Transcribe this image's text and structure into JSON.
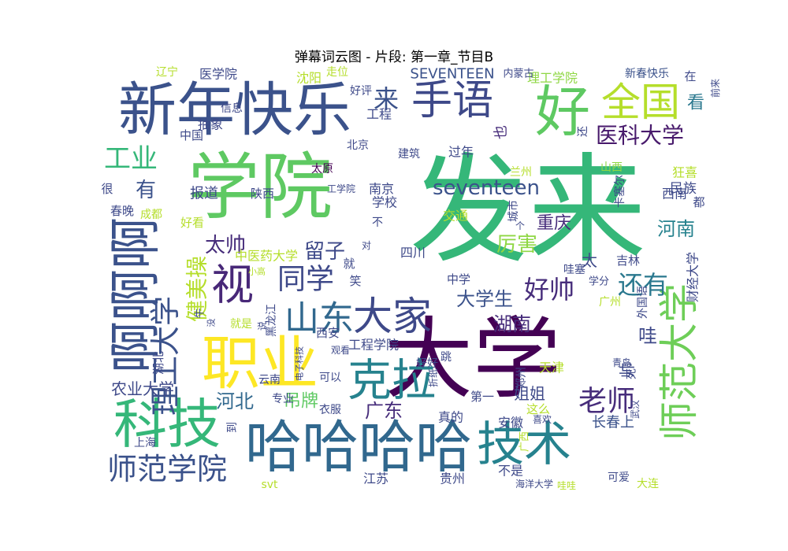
{
  "chart_data": {
    "type": "wordcloud",
    "title": "弹幕词云图 - 片段: 第一章_节目B",
    "colormap": "viridis",
    "words": [
      {
        "text": "发来",
        "weight": 100,
        "color": "#35b779"
      },
      {
        "text": "大学",
        "weight": 68,
        "color": "#440154"
      },
      {
        "text": "学院",
        "weight": 62,
        "color": "#5ec962"
      },
      {
        "text": "新年快乐",
        "weight": 48,
        "color": "#3b528b"
      },
      {
        "text": "哈哈哈哈",
        "weight": 46,
        "color": "#31688e"
      },
      {
        "text": "职业",
        "weight": 45,
        "color": "#fde725"
      },
      {
        "text": "好",
        "weight": 43,
        "color": "#5ec962"
      },
      {
        "text": "啊啊啊",
        "weight": 42,
        "color": "#3b528b"
      },
      {
        "text": "科技",
        "weight": 40,
        "color": "#35b779"
      },
      {
        "text": "技术",
        "weight": 38,
        "color": "#26828e"
      },
      {
        "text": "克拉",
        "weight": 37,
        "color": "#26828e"
      },
      {
        "text": "视",
        "weight": 36,
        "color": "#482878"
      },
      {
        "text": "师范大学",
        "weight": 36,
        "color": "#6ece58"
      },
      {
        "text": "手语",
        "weight": 34,
        "color": "#3e4989"
      },
      {
        "text": "全国",
        "weight": 34,
        "color": "#b5de2b"
      },
      {
        "text": "大家",
        "weight": 33,
        "color": "#3e4989"
      },
      {
        "text": "师范学院",
        "weight": 30,
        "color": "#3b528b"
      },
      {
        "text": "理工大学",
        "weight": 30,
        "color": "#3b528b"
      },
      {
        "text": "山东",
        "weight": 28,
        "color": "#31688e"
      },
      {
        "text": "工业",
        "weight": 27,
        "color": "#35b779"
      },
      {
        "text": "同学",
        "weight": 27,
        "color": "#3e4989"
      },
      {
        "text": "好帅",
        "weight": 25,
        "color": "#472d7b"
      },
      {
        "text": "还有",
        "weight": 25,
        "color": "#2a788e"
      },
      {
        "text": "老师",
        "weight": 25,
        "color": "#472d7b"
      },
      {
        "text": "来",
        "weight": 24,
        "color": "#3b528b"
      },
      {
        "text": "健美操",
        "weight": 23,
        "color": "#b5de2b"
      },
      {
        "text": "有",
        "weight": 22,
        "color": "#3b528b"
      },
      {
        "text": "医科大学",
        "weight": 21,
        "color": "#481a6c"
      },
      {
        "text": "seventeen",
        "weight": 21,
        "color": "#3b528b"
      },
      {
        "text": "留子",
        "weight": 21,
        "color": "#3e4989"
      },
      {
        "text": "太帅",
        "weight": 21,
        "color": "#472d7b"
      },
      {
        "text": "河南",
        "weight": 20,
        "color": "#26828e"
      },
      {
        "text": "厉害",
        "weight": 20,
        "color": "#8fd744"
      },
      {
        "text": "大学生",
        "weight": 20,
        "color": "#3b528b"
      },
      {
        "text": "湖南",
        "weight": 20,
        "color": "#472d7b"
      },
      {
        "text": "看",
        "weight": 20,
        "color": "#2a788e"
      },
      {
        "text": "河北",
        "weight": 19,
        "color": "#31688e"
      },
      {
        "text": "广东",
        "weight": 18,
        "color": "#472d7b"
      },
      {
        "text": "重庆",
        "weight": 17,
        "color": "#472d7b"
      },
      {
        "text": "吊牌",
        "weight": 17,
        "color": "#5ec962"
      },
      {
        "text": "SEVENTEEN",
        "weight": 16,
        "color": "#3b528b"
      },
      {
        "text": "农业大学",
        "weight": 16,
        "color": "#3e4989"
      },
      {
        "text": "哇",
        "weight": 16,
        "color": "#3e4989"
      },
      {
        "text": "太",
        "weight": 16,
        "color": "#3e4989"
      },
      {
        "text": "中医药大学",
        "weight": 14,
        "color": "#b5de2b"
      },
      {
        "text": "报道",
        "weight": 14,
        "color": "#3e4989"
      },
      {
        "text": "工程学院",
        "weight": 14,
        "color": "#3e4989"
      },
      {
        "text": "姐姐",
        "weight": 14,
        "color": "#3e4989"
      },
      {
        "text": "长春上",
        "weight": 14,
        "color": "#3b528b"
      },
      {
        "text": "帅",
        "weight": 14,
        "color": "#3e4989"
      },
      {
        "text": "医学院",
        "weight": 13,
        "color": "#3e4989"
      },
      {
        "text": "理工学院",
        "weight": 13,
        "color": "#8fd744"
      },
      {
        "text": "新春快乐",
        "weight": 13,
        "color": "#3b528b"
      },
      {
        "text": "内蒙古",
        "weight": 12,
        "color": "#3e4989"
      },
      {
        "text": "沈阳",
        "weight": 13,
        "color": "#b5de2b"
      },
      {
        "text": "辽宁",
        "weight": 12,
        "color": "#b5de2b"
      },
      {
        "text": "走位",
        "weight": 12,
        "color": "#b5de2b"
      },
      {
        "text": "工程",
        "weight": 13,
        "color": "#3e4989"
      },
      {
        "text": "抽象",
        "weight": 13,
        "color": "#3e4989"
      },
      {
        "text": "中国",
        "weight": 13,
        "color": "#3e4989"
      },
      {
        "text": "信息",
        "weight": 12,
        "color": "#3e4989"
      },
      {
        "text": "好评",
        "weight": 12,
        "color": "#3e4989"
      },
      {
        "text": "过年",
        "weight": 13,
        "color": "#3e4989"
      },
      {
        "text": "也",
        "weight": 13,
        "color": "#472d7b"
      },
      {
        "text": "还",
        "weight": 13,
        "color": "#3e4989"
      },
      {
        "text": "在",
        "weight": 13,
        "color": "#3e4989"
      },
      {
        "text": "前来",
        "weight": 12,
        "color": "#3e4989"
      },
      {
        "text": "北京",
        "weight": 12,
        "color": "#3e4989"
      },
      {
        "text": "建筑",
        "weight": 13,
        "color": "#3e4989"
      },
      {
        "text": "狂喜",
        "weight": 13,
        "color": "#b5de2b"
      },
      {
        "text": "民族",
        "weight": 13,
        "color": "#3e4989"
      },
      {
        "text": "太原",
        "weight": 12,
        "color": "#440154"
      },
      {
        "text": "南京",
        "weight": 13,
        "color": "#3e4989"
      },
      {
        "text": "兰州",
        "weight": 13,
        "color": "#b5de2b"
      },
      {
        "text": "山西",
        "weight": 12,
        "color": "#8fd744"
      },
      {
        "text": "卡塞尔",
        "weight": 12,
        "color": "#3e4989"
      },
      {
        "text": "很",
        "weight": 13,
        "color": "#3e4989"
      },
      {
        "text": "陕西",
        "weight": 13,
        "color": "#3e4989"
      },
      {
        "text": "工学院",
        "weight": 12,
        "color": "#3e4989"
      },
      {
        "text": "学校",
        "weight": 13,
        "color": "#3e4989"
      },
      {
        "text": "春晚",
        "weight": 13,
        "color": "#3e4989"
      },
      {
        "text": "成都",
        "weight": 12,
        "color": "#b5de2b"
      },
      {
        "text": "交通",
        "weight": 13,
        "color": "#b5de2b"
      },
      {
        "text": "城市",
        "weight": 12,
        "color": "#3e4989"
      },
      {
        "text": "西南",
        "weight": 13,
        "color": "#3e4989"
      },
      {
        "text": "都",
        "weight": 13,
        "color": "#3e4989"
      },
      {
        "text": "好看",
        "weight": 13,
        "color": "#b5de2b"
      },
      {
        "text": "不",
        "weight": 12,
        "color": "#3e4989"
      },
      {
        "text": "个",
        "weight": 12,
        "color": "#3e4989"
      },
      {
        "text": "四川",
        "weight": 13,
        "color": "#3e4989"
      },
      {
        "text": "就",
        "weight": 13,
        "color": "#3e4989"
      },
      {
        "text": "对",
        "weight": 11,
        "color": "#3e4989"
      },
      {
        "text": "笑",
        "weight": 13,
        "color": "#3e4989"
      },
      {
        "text": "中学",
        "weight": 13,
        "color": "#3e4989"
      },
      {
        "text": "小高",
        "weight": 11,
        "color": "#b5de2b"
      },
      {
        "text": "财经大学",
        "weight": 13,
        "color": "#3e4989"
      },
      {
        "text": "吉林",
        "weight": 13,
        "color": "#3e4989"
      },
      {
        "text": "哇塞",
        "weight": 12,
        "color": "#3e4989"
      },
      {
        "text": "学分",
        "weight": 12,
        "color": "#3e4989"
      },
      {
        "text": "外国语",
        "weight": 12,
        "color": "#3e4989"
      },
      {
        "text": "广州",
        "weight": 12,
        "color": "#b5de2b"
      },
      {
        "text": "牛",
        "weight": 12,
        "color": "#3e4989"
      },
      {
        "text": "没",
        "weight": 11,
        "color": "#3e4989"
      },
      {
        "text": "就是",
        "weight": 12,
        "color": "#b5de2b"
      },
      {
        "text": "说",
        "weight": 11,
        "color": "#3e4989"
      },
      {
        "text": "黑龙江",
        "weight": 12,
        "color": "#3e4989"
      },
      {
        "text": "西安",
        "weight": 13,
        "color": "#3e4989"
      },
      {
        "text": "观看",
        "weight": 11,
        "color": "#3e4989"
      },
      {
        "text": "湖北",
        "weight": 12,
        "color": "#3e4989"
      },
      {
        "text": "电子科技",
        "weight": 11,
        "color": "#3e4989"
      },
      {
        "text": "跳",
        "weight": 12,
        "color": "#3e4989"
      },
      {
        "text": "好好",
        "weight": 12,
        "color": "#3e4989"
      },
      {
        "text": "郑州",
        "weight": 12,
        "color": "#3e4989"
      },
      {
        "text": "天津",
        "weight": 13,
        "color": "#b5de2b"
      },
      {
        "text": "青岛",
        "weight": 11,
        "color": "#3e4989"
      },
      {
        "text": "死",
        "weight": 12,
        "color": "#3e4989"
      },
      {
        "text": "云南",
        "weight": 12,
        "color": "#3e4989"
      },
      {
        "text": "可以",
        "weight": 12,
        "color": "#3e4989"
      },
      {
        "text": "折纸",
        "weight": 11,
        "color": "#3e4989"
      },
      {
        "text": "专业",
        "weight": 12,
        "color": "#3e4989"
      },
      {
        "text": "衣服",
        "weight": 12,
        "color": "#3e4989"
      },
      {
        "text": "第一",
        "weight": 12,
        "color": "#3e4989"
      },
      {
        "text": "这么",
        "weight": 12,
        "color": "#b5de2b"
      },
      {
        "text": "真的",
        "weight": 13,
        "color": "#3e4989"
      },
      {
        "text": "安徽",
        "weight": 13,
        "color": "#3e4989"
      },
      {
        "text": "武汉",
        "weight": 11,
        "color": "#3e4989"
      },
      {
        "text": "喜欢",
        "weight": 11,
        "color": "#3e4989"
      },
      {
        "text": "到",
        "weight": 12,
        "color": "#3e4989"
      },
      {
        "text": "上海",
        "weight": 12,
        "color": "#3e4989"
      },
      {
        "text": "广西",
        "weight": 12,
        "color": "#b5de2b"
      },
      {
        "text": "不是",
        "weight": 13,
        "color": "#3e4989"
      },
      {
        "text": "江苏",
        "weight": 13,
        "color": "#3e4989"
      },
      {
        "text": "贵州",
        "weight": 13,
        "color": "#3e4989"
      },
      {
        "text": "可爱",
        "weight": 12,
        "color": "#3e4989"
      },
      {
        "text": "svt",
        "weight": 12,
        "color": "#b5de2b"
      },
      {
        "text": "海洋大学",
        "weight": 11,
        "color": "#3e4989"
      },
      {
        "text": "哇哇",
        "weight": 11,
        "color": "#b5de2b"
      },
      {
        "text": "大连",
        "weight": 12,
        "color": "#b5de2b"
      }
    ]
  }
}
